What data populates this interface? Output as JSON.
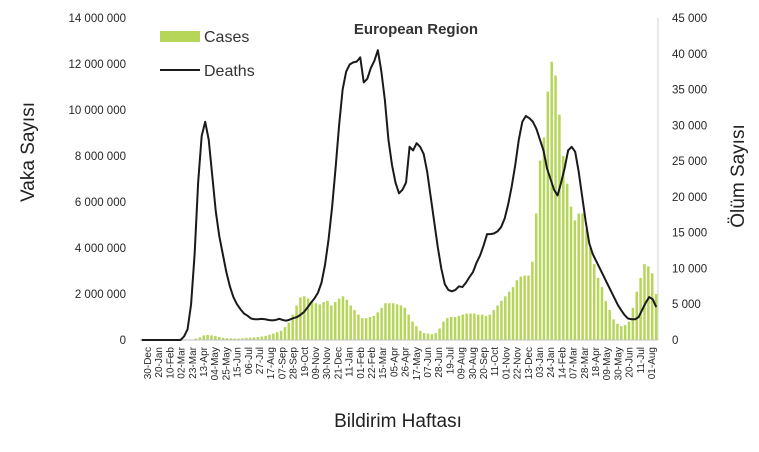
{
  "chart_data": {
    "type": "bar+line",
    "title": "European Region",
    "xlabel": "Bildirim Haftası",
    "ylabel_left": "Vaka Sayısı",
    "ylabel_right": "Ölüm Sayısı",
    "ylim_left": [
      0,
      14000000
    ],
    "ylim_right": [
      0,
      45000
    ],
    "yticks_left": [
      "0",
      "2 000 000",
      "4 000 000",
      "6 000 000",
      "8 000 000",
      "10 000 000",
      "12 000 000",
      "14 000 000"
    ],
    "yticks_right": [
      "0",
      "5 000",
      "10 000",
      "15 000",
      "20 000",
      "25 000",
      "30 000",
      "35 000",
      "40 000",
      "45 000"
    ],
    "xtick_labels": [
      "30-Dec",
      "20-Jan",
      "10-Feb",
      "02-Mar",
      "23-Mar",
      "13-Apr",
      "04-May",
      "25-May",
      "15-Jun",
      "06-Jul",
      "27-Jul",
      "17-Aug",
      "07-Sep",
      "28-Sep",
      "19-Oct",
      "09-Nov",
      "30-Nov",
      "21-Dec",
      "11-Jan",
      "01-Feb",
      "22-Feb",
      "15-Mar",
      "05-Apr",
      "26-Apr",
      "17-May",
      "07-Jun",
      "28-Jun",
      "19-Jul",
      "09-Aug",
      "30-Aug",
      "20-Sep",
      "11-Oct",
      "01-Nov",
      "22-Nov",
      "13-Dec",
      "03-Jan",
      "24-Jan",
      "14-Feb",
      "07-Mar",
      "28-Mar",
      "18-Apr",
      "09-May",
      "30-May",
      "20-Jun",
      "11-Jul",
      "01-Aug"
    ],
    "legend": {
      "placement": "top-left",
      "cases_label": "Cases",
      "deaths_label": "Deaths"
    },
    "series": [
      {
        "name": "Cases",
        "kind": "bar",
        "axis": "left",
        "color": "#b6d65a",
        "values": [
          0,
          0,
          0,
          0,
          0,
          0,
          0,
          0,
          0,
          0,
          0,
          0,
          0,
          10000,
          60000,
          120000,
          200000,
          220000,
          200000,
          170000,
          130000,
          100000,
          80000,
          70000,
          60000,
          60000,
          70000,
          90000,
          100000,
          110000,
          130000,
          150000,
          180000,
          230000,
          280000,
          340000,
          400000,
          560000,
          760000,
          1100000,
          1500000,
          1850000,
          1900000,
          1800000,
          1700000,
          1600000,
          1550000,
          1650000,
          1700000,
          1500000,
          1650000,
          1800000,
          1900000,
          1750000,
          1500000,
          1300000,
          1100000,
          950000,
          950000,
          1000000,
          1050000,
          1200000,
          1400000,
          1600000,
          1600000,
          1600000,
          1550000,
          1500000,
          1400000,
          1100000,
          800000,
          600000,
          400000,
          300000,
          280000,
          250000,
          300000,
          500000,
          800000,
          950000,
          1000000,
          1000000,
          1050000,
          1100000,
          1150000,
          1150000,
          1150000,
          1100000,
          1100000,
          1050000,
          1100000,
          1300000,
          1500000,
          1700000,
          1900000,
          2100000,
          2300000,
          2600000,
          2750000,
          2800000,
          2800000,
          3400000,
          5500000,
          7800000,
          8800000,
          10800000,
          12100000,
          11500000,
          9800000,
          8000000,
          6800000,
          5800000,
          5200000,
          5500000,
          5500000,
          4800000,
          4000000,
          3300000,
          2700000,
          2300000,
          1700000,
          1300000,
          900000,
          700000,
          600000,
          650000,
          800000,
          1400000,
          2100000,
          2700000,
          3300000,
          3200000,
          2900000,
          2000000
        ]
      },
      {
        "name": "Deaths",
        "kind": "line",
        "axis": "right",
        "color": "#1a1a1a",
        "values": [
          0,
          0,
          0,
          0,
          0,
          0,
          0,
          0,
          0,
          0,
          0,
          0,
          500,
          1500,
          5000,
          12000,
          22000,
          28500,
          30500,
          28000,
          23000,
          18000,
          14500,
          12000,
          9500,
          7500,
          6000,
          5000,
          4300,
          3700,
          3400,
          3000,
          2900,
          2900,
          2950,
          2900,
          2800,
          2750,
          2800,
          2950,
          2800,
          2700,
          2850,
          3050,
          3200,
          3500,
          3900,
          4500,
          5200,
          5800,
          6600,
          8000,
          10500,
          14000,
          18500,
          24000,
          30000,
          35000,
          37500,
          38500,
          38800,
          38900,
          39500,
          36000,
          36500,
          38000,
          39000,
          40500,
          37500,
          33500,
          28000,
          24500,
          22000,
          20500,
          21000,
          22000,
          27000,
          26500,
          27500,
          27000,
          26000,
          23500,
          20000,
          16500,
          13000,
          10000,
          7800,
          7000,
          6800,
          7000,
          7500,
          7400,
          8000,
          8800,
          9500,
          10800,
          11800,
          13200,
          14800,
          14800,
          14900,
          15200,
          15800,
          17000,
          19000,
          21500,
          24500,
          28000,
          30500,
          31300,
          31000,
          30500,
          29500,
          28000,
          26500,
          24000,
          22500,
          21000,
          20200,
          22000,
          24000,
          26500,
          27000,
          26300,
          23500,
          20000,
          16500,
          13500,
          12000,
          11000,
          10000,
          9000,
          8000,
          7000,
          6000,
          5000,
          4200,
          3500,
          3000,
          2900,
          2900,
          3200,
          4200,
          5200,
          6000,
          5700,
          4600
        ]
      }
    ]
  }
}
